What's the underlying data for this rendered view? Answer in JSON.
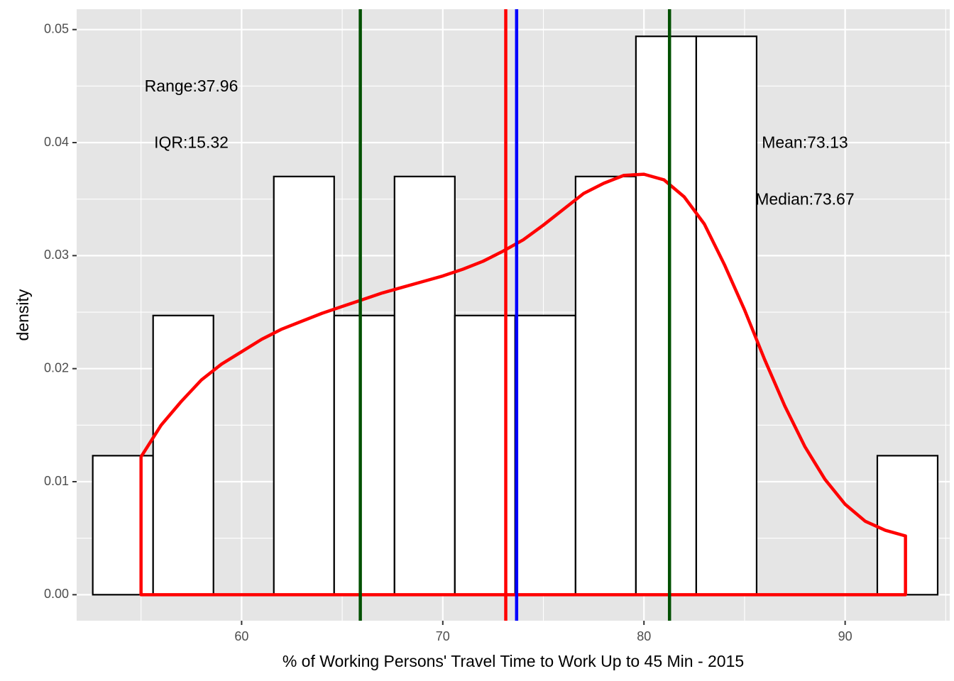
{
  "chart_data": {
    "type": "histogram",
    "xlabel": "% of Working Persons' Travel Time to Work Up to 45 Min - 2015",
    "ylabel": "density",
    "xlim": [
      51.8,
      95.2
    ],
    "ylim": [
      -0.0023,
      0.0518
    ],
    "x_ticks": [
      60,
      70,
      80,
      90
    ],
    "x_tick_labels": [
      "60",
      "70",
      "80",
      "90"
    ],
    "x_minor": [
      55,
      65,
      75,
      85,
      95
    ],
    "y_ticks": [
      0,
      0.01,
      0.02,
      0.03,
      0.04,
      0.05
    ],
    "y_tick_labels": [
      "0.00",
      "0.01",
      "0.02",
      "0.03",
      "0.04",
      "0.05"
    ],
    "y_minor": [
      0.005,
      0.015,
      0.025,
      0.035,
      0.045
    ],
    "grid": true,
    "bins": [
      {
        "x0": 52.6,
        "x1": 55.6,
        "density": 0.0123
      },
      {
        "x0": 55.6,
        "x1": 58.6,
        "density": 0.0247
      },
      {
        "x0": 58.6,
        "x1": 61.6,
        "density": 0
      },
      {
        "x0": 61.6,
        "x1": 64.6,
        "density": 0.037
      },
      {
        "x0": 64.6,
        "x1": 67.6,
        "density": 0.0247
      },
      {
        "x0": 67.6,
        "x1": 70.6,
        "density": 0.037
      },
      {
        "x0": 70.6,
        "x1": 73.6,
        "density": 0.0247
      },
      {
        "x0": 73.6,
        "x1": 76.6,
        "density": 0.0247
      },
      {
        "x0": 76.6,
        "x1": 79.6,
        "density": 0.037
      },
      {
        "x0": 79.6,
        "x1": 82.6,
        "density": 0.0494
      },
      {
        "x0": 82.6,
        "x1": 85.6,
        "density": 0.0494
      },
      {
        "x0": 85.6,
        "x1": 88.6,
        "density": 0
      },
      {
        "x0": 88.6,
        "x1": 91.6,
        "density": 0
      },
      {
        "x0": 91.6,
        "x1": 94.6,
        "density": 0.0123
      }
    ],
    "density_curve": {
      "x": [
        55.0,
        56.0,
        57.0,
        58.0,
        59.0,
        60.0,
        61.0,
        62.0,
        63.0,
        64.0,
        65.0,
        66.0,
        67.0,
        68.0,
        69.0,
        70.0,
        71.0,
        72.0,
        73.0,
        74.0,
        75.0,
        76.0,
        77.0,
        78.0,
        79.0,
        80.0,
        81.0,
        82.0,
        83.0,
        84.0,
        85.0,
        86.0,
        87.0,
        88.0,
        89.0,
        90.0,
        91.0,
        92.0,
        93.0
      ],
      "y": [
        0.0122,
        0.015,
        0.0171,
        0.019,
        0.0204,
        0.0215,
        0.0226,
        0.0235,
        0.0242,
        0.0249,
        0.0255,
        0.0261,
        0.0267,
        0.0272,
        0.0277,
        0.0282,
        0.0288,
        0.0295,
        0.0304,
        0.0314,
        0.0327,
        0.0341,
        0.0355,
        0.0364,
        0.0371,
        0.0372,
        0.0367,
        0.0352,
        0.0328,
        0.0292,
        0.0252,
        0.0208,
        0.0167,
        0.0131,
        0.0102,
        0.008,
        0.0065,
        0.0057,
        0.0052
      ],
      "color": "#ff0000"
    },
    "vlines": [
      {
        "x": 65.9,
        "color": "#005000"
      },
      {
        "x": 81.27,
        "color": "#005000"
      },
      {
        "x": 73.13,
        "color": "#ff0000"
      },
      {
        "x": 73.67,
        "color": "#0000ff"
      }
    ],
    "annotations": [
      {
        "text": "Range:37.96",
        "x": 57.5,
        "y": 0.0449
      },
      {
        "text": "IQR:15.32",
        "x": 57.5,
        "y": 0.0399
      },
      {
        "text": "Mean:73.13",
        "x": 88.0,
        "y": 0.0399
      },
      {
        "text": "Median:73.67",
        "x": 88.0,
        "y": 0.0349
      }
    ],
    "colors": {
      "panel_bg": "#e5e5e5",
      "grid": "#ffffff",
      "bar_fill": "#ffffff",
      "bar_stroke": "#000000"
    }
  }
}
